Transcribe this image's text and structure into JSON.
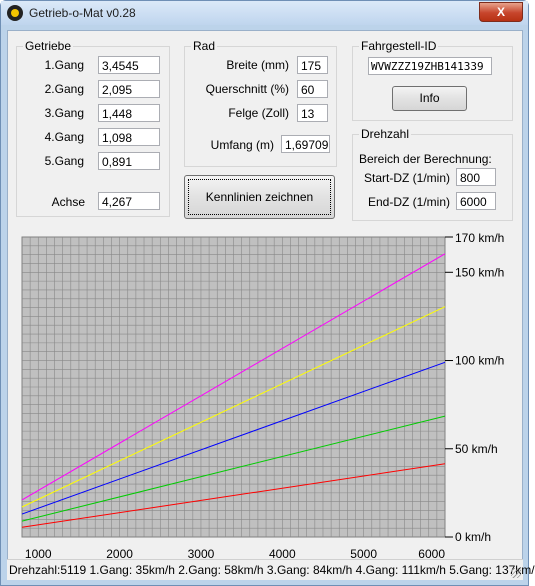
{
  "window": {
    "title": "Getrieb-o-Mat v0.28",
    "close_label": "X"
  },
  "getriebe": {
    "legend": "Getriebe",
    "gears": [
      {
        "label": "1.Gang",
        "value": "3,4545"
      },
      {
        "label": "2.Gang",
        "value": "2,095"
      },
      {
        "label": "3.Gang",
        "value": "1,448"
      },
      {
        "label": "4.Gang",
        "value": "1,098"
      },
      {
        "label": "5.Gang",
        "value": "0,891"
      }
    ],
    "achse_label": "Achse",
    "achse_value": "4,267"
  },
  "rad": {
    "legend": "Rad",
    "breite_label": "Breite (mm)",
    "breite_value": "175",
    "querschnitt_label": "Querschnitt (%)",
    "querschnitt_value": "60",
    "felge_label": "Felge (Zoll)",
    "felge_value": "13",
    "umfang_label": "Umfang (m)",
    "umfang_value": "1,69709"
  },
  "fahrgestell": {
    "legend": "Fahrgestell-ID",
    "value": "WVWZZZ19ZHB141339",
    "info_button": "Info"
  },
  "drehzahl": {
    "legend": "Drehzahl",
    "bereich_label": "Bereich der Berechnung:",
    "start_label": "Start-DZ (1/min)",
    "start_value": "800",
    "end_label": "End-DZ (1/min)",
    "end_value": "6000"
  },
  "kennlinien_button": "Kennlinien zeichnen",
  "chart_data": {
    "type": "line",
    "xlim": [
      800,
      6000
    ],
    "ylim": [
      0,
      170
    ],
    "x_ticks": [
      1000,
      2000,
      3000,
      4000,
      5000,
      6000
    ],
    "x_tick_labels": [
      "1000",
      "2000",
      "3000",
      "4000",
      "5000",
      "6000"
    ],
    "y_ticks": [
      0,
      50,
      100,
      150,
      170
    ],
    "y_tick_labels": [
      "0 km/h",
      "50 km/h",
      "100 km/h",
      "150 km/h",
      "170 km/h"
    ],
    "grid": true,
    "background": "#c0c0c0",
    "series": [
      {
        "color": "#ff0000",
        "x": [
          800,
          6000
        ],
        "y": [
          5.5,
          41.5
        ]
      },
      {
        "color": "#00cc00",
        "x": [
          800,
          6000
        ],
        "y": [
          9,
          68.5
        ]
      },
      {
        "color": "#0000ff",
        "x": [
          800,
          6000
        ],
        "y": [
          13,
          99
        ]
      },
      {
        "color": "#ffff00",
        "x": [
          800,
          6000
        ],
        "y": [
          17,
          130.5
        ]
      },
      {
        "color": "#ff00ff",
        "x": [
          800,
          6000
        ],
        "y": [
          21,
          160.5
        ]
      }
    ]
  },
  "statusbar": {
    "text": "Drehzahl:5119 1.Gang: 35km/h 2.Gang: 58km/h 3.Gang: 84km/h 4.Gang: 111km/h 5.Gang: 137km/"
  }
}
